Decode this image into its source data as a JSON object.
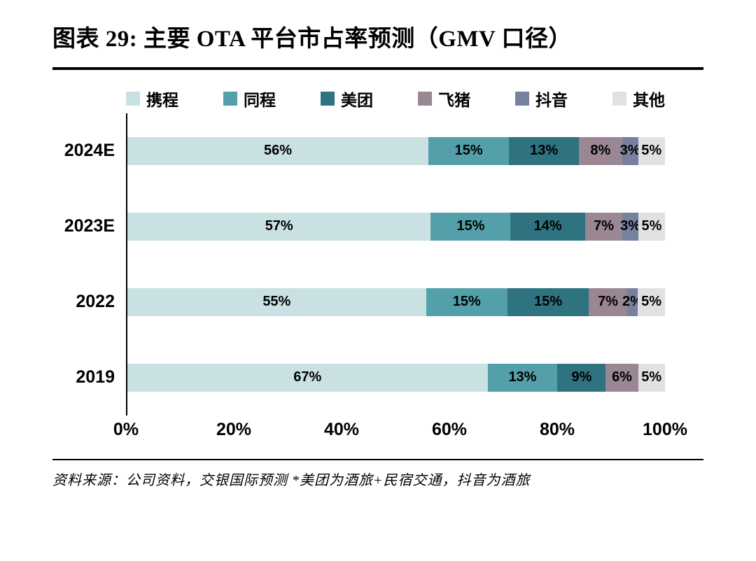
{
  "title": "图表 29: 主要 OTA 平台市占率预测（GMV 口径）",
  "source_note": "资料来源：公司资料，交银国际预测  *美团为酒旅+民宿交通，抖音为酒旅",
  "chart_data": {
    "type": "bar",
    "orientation": "horizontal",
    "stacked": true,
    "unit": "%",
    "title": "主要 OTA 平台市占率预测（GMV 口径）",
    "categories": [
      "2024E",
      "2023E",
      "2022",
      "2019"
    ],
    "series": [
      {
        "name": "携程",
        "color": "#c9e1e3",
        "values": [
          56,
          57,
          55,
          67
        ]
      },
      {
        "name": "同程",
        "color": "#54a0aa",
        "values": [
          15,
          15,
          15,
          13
        ]
      },
      {
        "name": "美团",
        "color": "#2f7280",
        "values": [
          13,
          14,
          15,
          9
        ]
      },
      {
        "name": "飞猪",
        "color": "#9a8793",
        "values": [
          8,
          7,
          7,
          6
        ]
      },
      {
        "name": "抖音",
        "color": "#76819e",
        "values": [
          3,
          3,
          2,
          0
        ]
      },
      {
        "name": "其他",
        "color": "#e3e0e4",
        "values": [
          5,
          5,
          5,
          5
        ]
      }
    ],
    "x_ticks": [
      "0%",
      "20%",
      "40%",
      "60%",
      "80%",
      "100%"
    ],
    "xlim": [
      0,
      100
    ],
    "grid": false,
    "legend_position": "top",
    "value_label_format": "{value}%"
  }
}
